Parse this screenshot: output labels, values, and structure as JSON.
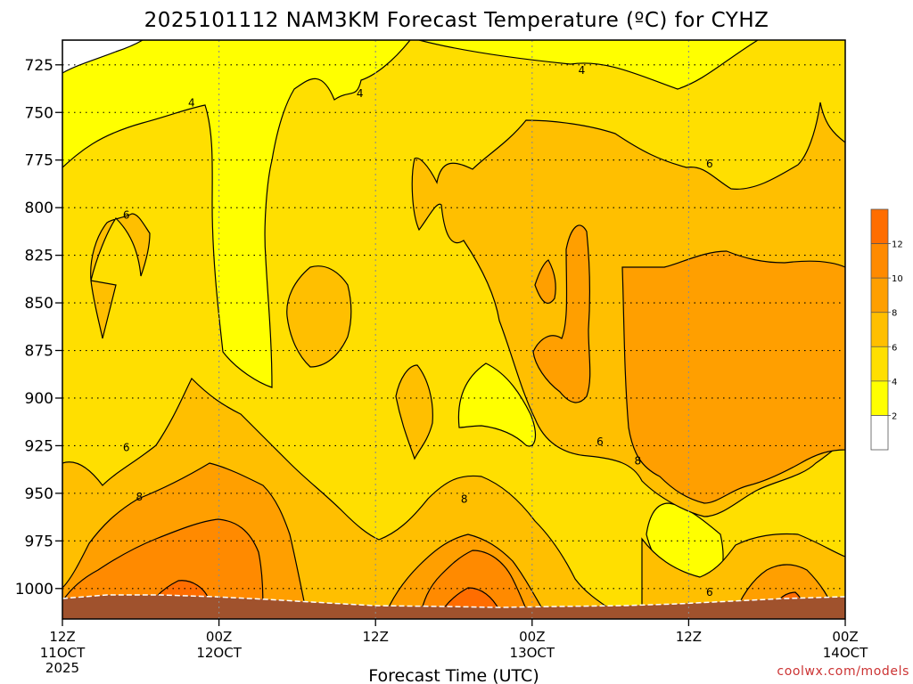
{
  "chart_data": {
    "type": "contour",
    "title": "2025101112 NAM3KM Forecast Temperature (ºC) for CYHZ",
    "xlabel": "Forecast Time (UTC)",
    "ylabel": "",
    "credit": "coolwx.com/models",
    "y_ticks": [
      "725",
      "750",
      "775",
      "800",
      "825",
      "850",
      "875",
      "900",
      "925",
      "950",
      "975",
      "1000"
    ],
    "y_values": [
      725,
      750,
      775,
      800,
      825,
      850,
      875,
      900,
      925,
      950,
      975,
      1000
    ],
    "ylim": [
      1016,
      712
    ],
    "x_ticks": [
      {
        "top": "12Z",
        "bottom": "11OCT",
        "extra": "2025",
        "hour": 0
      },
      {
        "top": "00Z",
        "bottom": "12OCT",
        "extra": "",
        "hour": 12
      },
      {
        "top": "12Z",
        "bottom": "",
        "extra": "",
        "hour": 24
      },
      {
        "top": "00Z",
        "bottom": "13OCT",
        "extra": "",
        "hour": 36
      },
      {
        "top": "12Z",
        "bottom": "",
        "extra": "",
        "hour": 48
      },
      {
        "top": "00Z",
        "bottom": "14OCT",
        "extra": "",
        "hour": 60
      }
    ],
    "xlim": [
      0,
      60
    ],
    "colorbar": {
      "levels": [
        2,
        4,
        6,
        8,
        10,
        12
      ],
      "labels": [
        "2",
        "4",
        "6",
        "8",
        "10",
        "12"
      ],
      "colors": [
        "#ffffff",
        "#ffff00",
        "#ffdf00",
        "#ffbf00",
        "#ff9f00",
        "#ff8a00",
        "#ff6d00"
      ]
    },
    "contour_labels": [
      {
        "text": "4",
        "x": 9.9,
        "p": 745
      },
      {
        "text": "4",
        "x": 22.8,
        "p": 740
      },
      {
        "text": "4",
        "x": 39.8,
        "p": 728
      },
      {
        "text": "6",
        "x": 4.9,
        "p": 804
      },
      {
        "text": "6",
        "x": 49.6,
        "p": 777
      },
      {
        "text": "6",
        "x": 4.9,
        "p": 926
      },
      {
        "text": "6",
        "x": 41.2,
        "p": 923
      },
      {
        "text": "6",
        "x": 49.6,
        "p": 1002
      },
      {
        "text": "8",
        "x": 5.9,
        "p": 952
      },
      {
        "text": "8",
        "x": 30.8,
        "p": 953
      },
      {
        "text": "8",
        "x": 44.1,
        "p": 933
      }
    ],
    "grid": true,
    "surface_color": "#a0522d"
  }
}
